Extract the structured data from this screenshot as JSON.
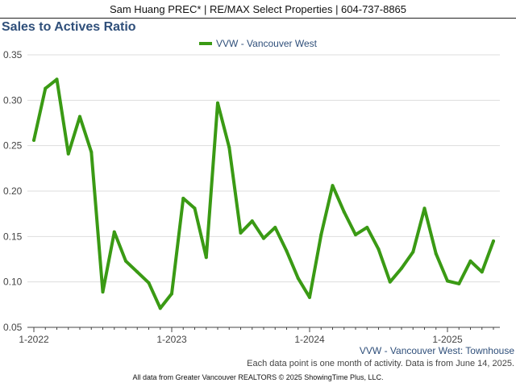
{
  "header": {
    "agent": "Sam Huang PREC* | RE/MAX Select Properties | 604-737-8865"
  },
  "colors": {
    "series": "#3a9a14",
    "title": "#2f4f7a",
    "grid": "#dddddd",
    "axis": "#444444"
  },
  "chart_data": {
    "type": "line",
    "title": "Sales to Actives Ratio",
    "subtitle": "VVW - Vancouver West: Townhouse",
    "note": "Each data point is one month of activity. Data is from June 14, 2025.",
    "footer": "All data from Greater Vancouver REALTORS © 2025 ShowingTime Plus, LLC.",
    "xlabel": "",
    "ylabel": "",
    "ylim": [
      0.05,
      0.35
    ],
    "y_ticks": [
      "0.05",
      "0.10",
      "0.15",
      "0.20",
      "0.25",
      "0.30",
      "0.35"
    ],
    "x_ticks": [
      {
        "label": "1-2022",
        "x": "2022-01"
      },
      {
        "label": "1-2023",
        "x": "2023-01"
      },
      {
        "label": "1-2024",
        "x": "2024-01"
      },
      {
        "label": "1-2025",
        "x": "2025-01"
      }
    ],
    "grid": true,
    "legend_position": "top-center",
    "series": [
      {
        "name": "VVW - Vancouver West",
        "x": [
          "2022-01",
          "2022-02",
          "2022-03",
          "2022-04",
          "2022-05",
          "2022-06",
          "2022-07",
          "2022-08",
          "2022-09",
          "2022-10",
          "2022-11",
          "2022-12",
          "2023-01",
          "2023-02",
          "2023-03",
          "2023-04",
          "2023-05",
          "2023-06",
          "2023-07",
          "2023-08",
          "2023-09",
          "2023-10",
          "2023-11",
          "2023-12",
          "2024-01",
          "2024-02",
          "2024-03",
          "2024-04",
          "2024-05",
          "2024-06",
          "2024-07",
          "2024-08",
          "2024-09",
          "2024-10",
          "2024-11",
          "2024-12",
          "2025-01",
          "2025-02",
          "2025-03",
          "2025-04",
          "2025-05"
        ],
        "values": [
          0.256,
          0.313,
          0.323,
          0.241,
          0.282,
          0.243,
          0.089,
          0.155,
          0.123,
          0.111,
          0.099,
          0.071,
          0.087,
          0.192,
          0.181,
          0.127,
          0.297,
          0.248,
          0.154,
          0.167,
          0.148,
          0.16,
          0.134,
          0.104,
          0.083,
          0.152,
          0.206,
          0.177,
          0.152,
          0.16,
          0.136,
          0.1,
          0.115,
          0.133,
          0.181,
          0.131,
          0.101,
          0.098,
          0.123,
          0.111,
          0.145
        ]
      }
    ]
  }
}
